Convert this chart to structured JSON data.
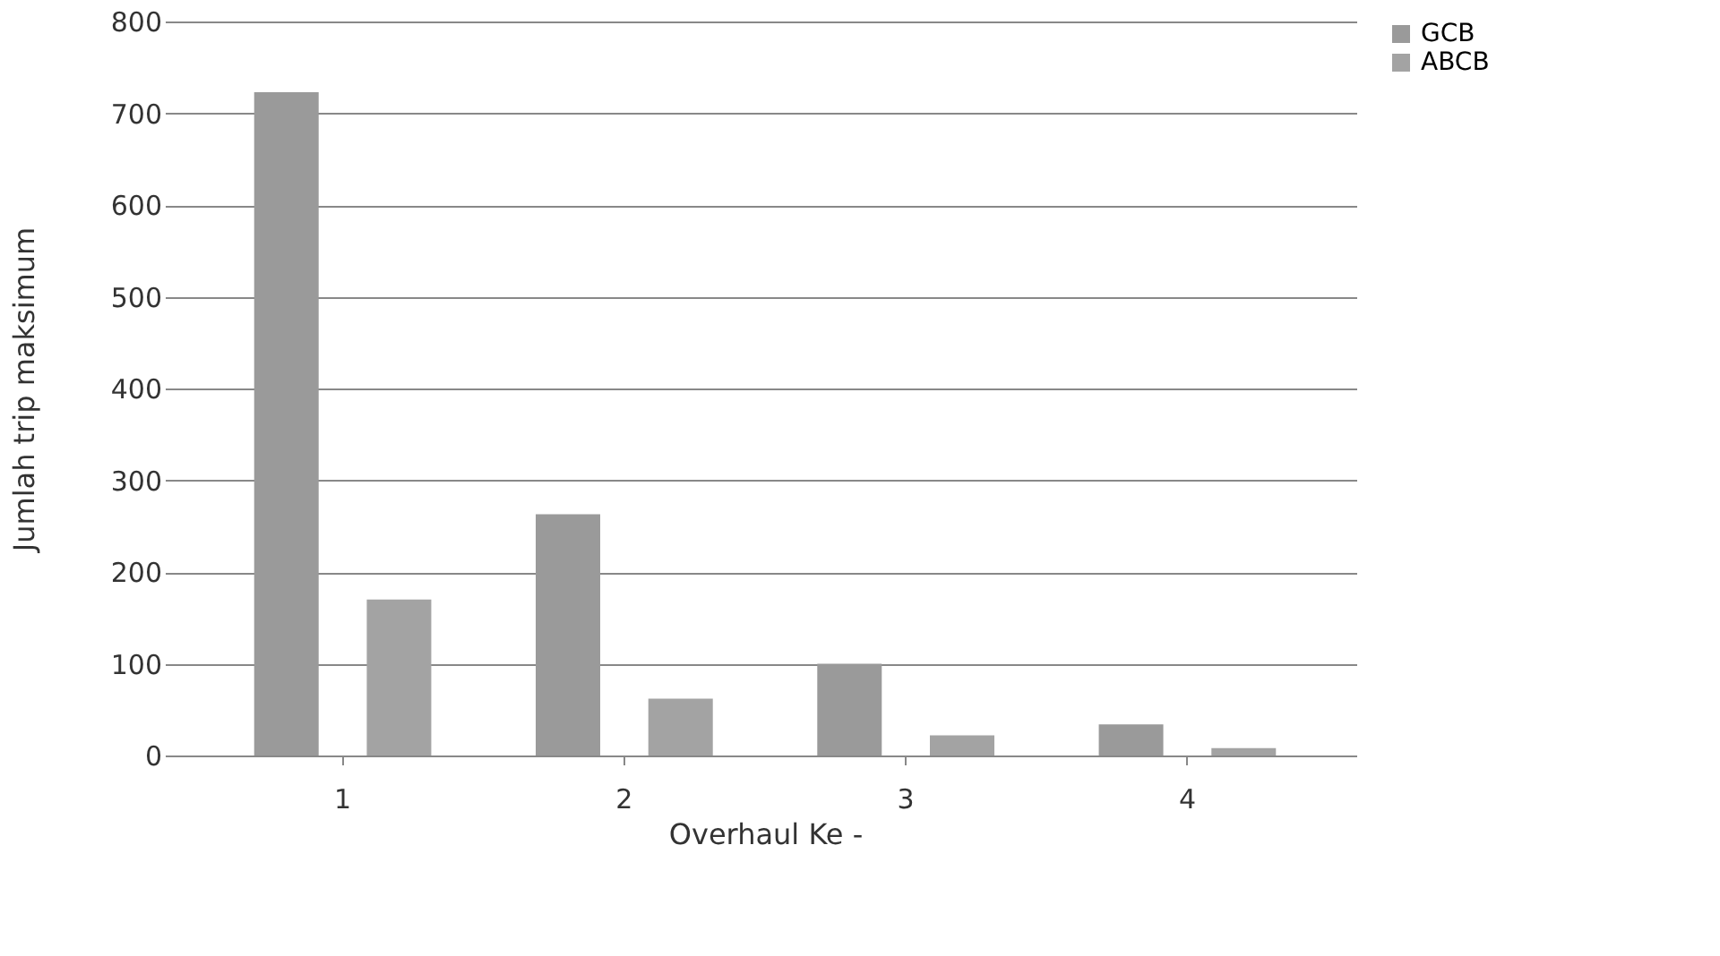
{
  "chart_data": {
    "type": "bar",
    "xlabel": "Overhaul Ke -",
    "ylabel": "Jumlah trip maksimum",
    "categories": [
      "1",
      "2",
      "3",
      "4"
    ],
    "series": [
      {
        "name": "GCB",
        "color": "#9a9a9a",
        "values": [
          723,
          263,
          100,
          34
        ]
      },
      {
        "name": "ABCB",
        "color": "#a3a3a3",
        "values": [
          170,
          62,
          22,
          8
        ]
      }
    ],
    "ylim": [
      0,
      800
    ],
    "yticks": [
      0,
      100,
      200,
      300,
      400,
      500,
      600,
      700,
      800
    ],
    "grid": "y",
    "legend": "right"
  }
}
